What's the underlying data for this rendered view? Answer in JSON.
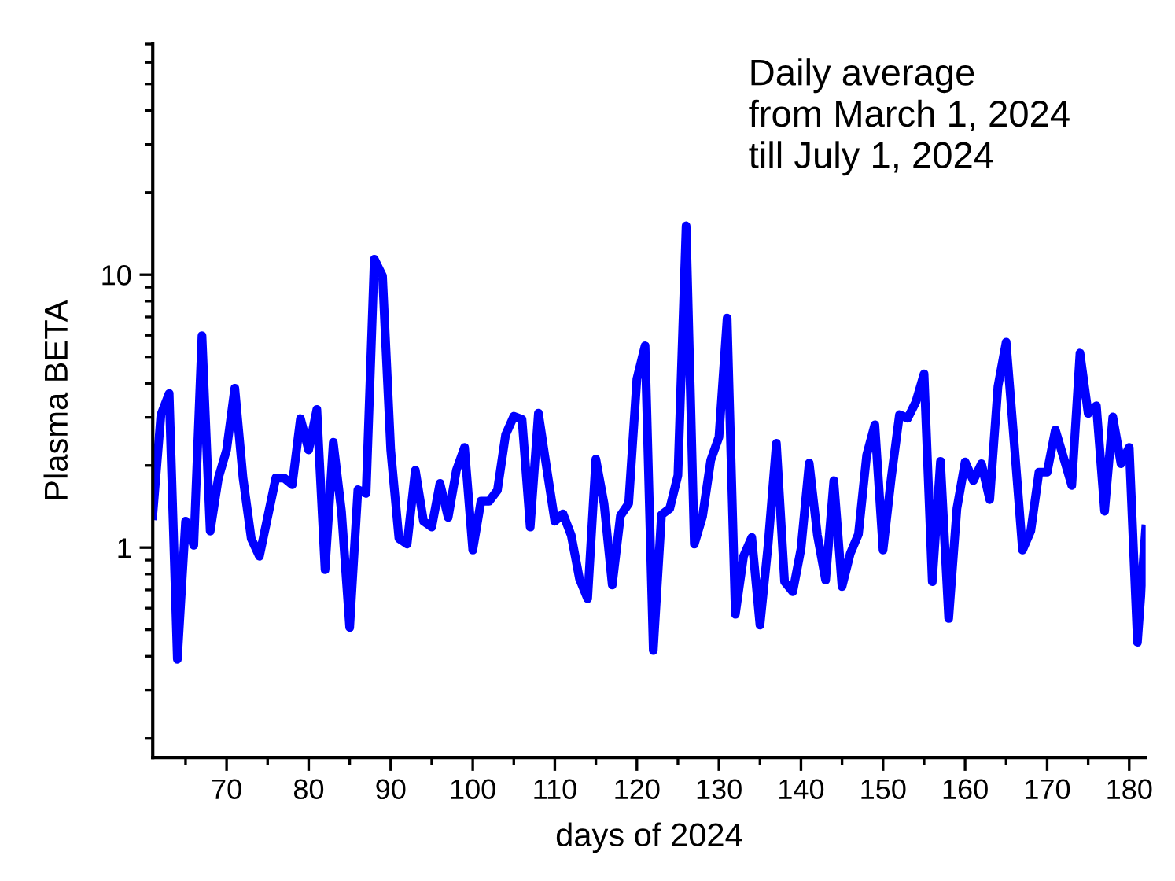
{
  "chart_data": {
    "type": "line",
    "xlabel": "days of 2024",
    "ylabel": "Plasma BETA",
    "annotations": [
      "Daily average\nfrom March 1, 2024\ntill July 1, 2024"
    ],
    "log": "y",
    "xlim": [
      61,
      182
    ],
    "ylim": [
      0.17,
      70
    ],
    "xticks": [
      70,
      80,
      90,
      100,
      110,
      120,
      130,
      140,
      150,
      160,
      170,
      180
    ],
    "yticks": [
      1,
      10
    ],
    "grid": false,
    "marker": "none",
    "line_style": "solid",
    "series": [
      {
        "color": "#0000ff",
        "x": [
          61,
          62,
          63,
          64,
          65,
          66,
          67,
          68,
          69,
          70,
          71,
          72,
          73,
          74,
          76,
          77,
          78,
          79,
          80,
          81,
          82,
          83,
          84,
          85,
          86,
          87,
          88,
          89,
          90,
          91,
          92,
          93,
          94,
          95,
          96,
          97,
          98,
          99,
          100,
          101,
          102,
          103,
          104,
          105,
          106,
          107,
          108,
          109,
          110,
          111,
          112,
          113,
          114,
          115,
          116,
          117,
          118,
          119,
          120,
          121,
          122,
          123,
          124,
          125,
          126,
          127,
          128,
          129,
          130,
          131,
          132,
          133,
          134,
          135,
          136,
          137,
          138,
          139,
          140,
          141,
          142,
          143,
          144,
          145,
          146,
          147,
          148,
          149,
          150,
          151,
          152,
          153,
          154,
          155,
          156,
          157,
          158,
          159,
          160,
          161,
          162,
          163,
          164,
          165,
          166,
          167,
          168,
          169,
          170,
          171,
          172,
          173,
          174,
          175,
          176,
          177,
          178,
          179,
          180,
          181,
          182
        ],
        "values": [
          1.31,
          3.07,
          3.67,
          0.39,
          1.25,
          1.02,
          5.98,
          1.15,
          1.8,
          2.28,
          3.84,
          1.8,
          1.08,
          0.93,
          1.8,
          1.8,
          1.7,
          2.97,
          2.28,
          3.21,
          0.83,
          2.43,
          1.36,
          0.51,
          1.63,
          1.58,
          11.4,
          9.9,
          2.28,
          1.08,
          1.03,
          1.92,
          1.25,
          1.19,
          1.72,
          1.29,
          1.92,
          2.33,
          0.98,
          1.48,
          1.48,
          1.62,
          2.59,
          3.03,
          2.95,
          1.19,
          3.11,
          1.96,
          1.25,
          1.33,
          1.11,
          0.77,
          0.65,
          2.11,
          1.45,
          0.73,
          1.31,
          1.45,
          4.15,
          5.49,
          0.42,
          1.32,
          1.39,
          1.84,
          15.1,
          1.03,
          1.3,
          2.09,
          2.54,
          6.94,
          0.57,
          0.93,
          1.09,
          0.52,
          1.03,
          2.41,
          0.75,
          0.69,
          0.99,
          2.04,
          1.11,
          0.76,
          1.76,
          0.72,
          0.95,
          1.12,
          2.18,
          2.82,
          0.98,
          1.8,
          3.07,
          2.98,
          3.42,
          4.33,
          0.75,
          2.07,
          0.55,
          1.39,
          2.06,
          1.76,
          2.03,
          1.5,
          3.89,
          5.66,
          2.38,
          0.98,
          1.15,
          1.89,
          1.89,
          2.7,
          2.14,
          1.69,
          5.16,
          3.1,
          3.31,
          1.36,
          3.01,
          2.03,
          2.33,
          0.45,
          1.17
        ]
      }
    ]
  }
}
